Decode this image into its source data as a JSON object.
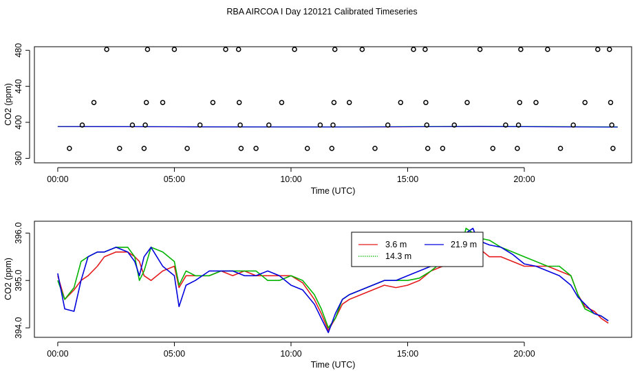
{
  "figure_title": "RBA AIRCOA I  Day 120121  Calibrated Timeseries",
  "chart_data": [
    {
      "type": "scatter",
      "title": "",
      "xlabel": "Time (UTC)",
      "ylabel": "CO2 (ppm)",
      "xlim": [
        -1.0,
        24.6
      ],
      "ylim": [
        355,
        484
      ],
      "x_ticks": [
        {
          "value": 0,
          "label": "00:00"
        },
        {
          "value": 5,
          "label": "05:00"
        },
        {
          "value": 10,
          "label": "10:00"
        },
        {
          "value": 15,
          "label": "15:00"
        },
        {
          "value": 20,
          "label": "20:00"
        }
      ],
      "y_ticks": [
        {
          "value": 360,
          "label": "360"
        },
        {
          "value": 400,
          "label": "400"
        },
        {
          "value": 440,
          "label": "440"
        },
        {
          "value": 480,
          "label": "480"
        }
      ],
      "colors": {
        "red": "#e41a1c",
        "green": "#00b400",
        "blue": "#0000dd"
      },
      "calibration_points": [
        {
          "x": 0.5,
          "y": 371
        },
        {
          "x": 1.05,
          "y": 397
        },
        {
          "x": 1.55,
          "y": 422
        },
        {
          "x": 2.1,
          "y": 481
        },
        {
          "x": 2.65,
          "y": 371
        },
        {
          "x": 3.2,
          "y": 397
        },
        {
          "x": 3.7,
          "y": 371
        },
        {
          "x": 3.75,
          "y": 397
        },
        {
          "x": 3.8,
          "y": 422
        },
        {
          "x": 3.85,
          "y": 481
        },
        {
          "x": 4.5,
          "y": 422
        },
        {
          "x": 5.0,
          "y": 481
        },
        {
          "x": 5.55,
          "y": 371
        },
        {
          "x": 6.1,
          "y": 397
        },
        {
          "x": 6.65,
          "y": 422
        },
        {
          "x": 7.2,
          "y": 481
        },
        {
          "x": 7.75,
          "y": 481
        },
        {
          "x": 7.78,
          "y": 422
        },
        {
          "x": 7.82,
          "y": 397
        },
        {
          "x": 7.86,
          "y": 371
        },
        {
          "x": 8.5,
          "y": 371
        },
        {
          "x": 9.05,
          "y": 397
        },
        {
          "x": 9.6,
          "y": 422
        },
        {
          "x": 10.15,
          "y": 481
        },
        {
          "x": 10.7,
          "y": 371
        },
        {
          "x": 11.25,
          "y": 397
        },
        {
          "x": 11.75,
          "y": 371
        },
        {
          "x": 11.8,
          "y": 397
        },
        {
          "x": 11.84,
          "y": 422
        },
        {
          "x": 11.88,
          "y": 481
        },
        {
          "x": 12.5,
          "y": 422
        },
        {
          "x": 13.05,
          "y": 481
        },
        {
          "x": 13.6,
          "y": 371
        },
        {
          "x": 14.15,
          "y": 397
        },
        {
          "x": 14.7,
          "y": 422
        },
        {
          "x": 15.25,
          "y": 481
        },
        {
          "x": 15.75,
          "y": 481
        },
        {
          "x": 15.78,
          "y": 422
        },
        {
          "x": 15.82,
          "y": 397
        },
        {
          "x": 15.86,
          "y": 371
        },
        {
          "x": 16.5,
          "y": 371
        },
        {
          "x": 17.0,
          "y": 397
        },
        {
          "x": 17.55,
          "y": 422
        },
        {
          "x": 18.1,
          "y": 481
        },
        {
          "x": 18.65,
          "y": 371
        },
        {
          "x": 19.2,
          "y": 397
        },
        {
          "x": 19.7,
          "y": 371
        },
        {
          "x": 19.75,
          "y": 397
        },
        {
          "x": 19.8,
          "y": 422
        },
        {
          "x": 19.85,
          "y": 481
        },
        {
          "x": 20.5,
          "y": 422
        },
        {
          "x": 21.0,
          "y": 481
        },
        {
          "x": 21.55,
          "y": 371
        },
        {
          "x": 22.1,
          "y": 397
        },
        {
          "x": 22.6,
          "y": 422
        },
        {
          "x": 23.15,
          "y": 481
        },
        {
          "x": 23.65,
          "y": 481
        },
        {
          "x": 23.7,
          "y": 422
        },
        {
          "x": 23.75,
          "y": 397
        },
        {
          "x": 23.8,
          "y": 371
        }
      ],
      "lines": [
        {
          "color": "#e41a1c",
          "x": [
            0,
            6,
            12,
            18,
            24
          ],
          "y": [
            395.2,
            395.0,
            394.8,
            395.3,
            394.9
          ]
        },
        {
          "color": "#00b400",
          "x": [
            0,
            6,
            12,
            18,
            24
          ],
          "y": [
            395.4,
            395.1,
            394.9,
            395.5,
            395.0
          ]
        },
        {
          "color": "#0000dd",
          "x": [
            0,
            6,
            12,
            18,
            24
          ],
          "y": [
            395.3,
            395.0,
            394.8,
            395.4,
            394.7
          ]
        }
      ]
    },
    {
      "type": "line",
      "title": "",
      "xlabel": "Time (UTC)",
      "ylabel": "CO2 (ppm)",
      "xlim": [
        -1.0,
        24.6
      ],
      "ylim": [
        393.8,
        396.25
      ],
      "x_ticks": [
        {
          "value": 0,
          "label": "00:00"
        },
        {
          "value": 5,
          "label": "05:00"
        },
        {
          "value": 10,
          "label": "10:00"
        },
        {
          "value": 15,
          "label": "15:00"
        },
        {
          "value": 20,
          "label": "20:00"
        }
      ],
      "y_ticks": [
        {
          "value": 394.0,
          "label": "394.0"
        },
        {
          "value": 395.0,
          "label": "395.0"
        },
        {
          "value": 396.0,
          "label": "396.0"
        }
      ],
      "legend": {
        "placement": "top-right",
        "entries": [
          {
            "label": "3.6 m",
            "color": "#e41a1c"
          },
          {
            "label": "14.3 m",
            "color": "#00b400"
          },
          {
            "label": "21.9 m",
            "color": "#0000dd"
          }
        ]
      },
      "x": [
        0,
        0.3,
        0.7,
        1.0,
        1.3,
        1.7,
        2.0,
        2.5,
        3.0,
        3.3,
        3.5,
        3.7,
        4.0,
        4.5,
        5.0,
        5.2,
        5.5,
        5.9,
        6.5,
        7.0,
        7.5,
        8.0,
        8.5,
        9.0,
        9.5,
        10.0,
        10.5,
        11.0,
        11.3,
        11.6,
        11.9,
        12.2,
        12.5,
        13.0,
        13.5,
        14.0,
        14.5,
        15.0,
        15.5,
        16.0,
        16.5,
        17.0,
        17.3,
        17.5,
        17.8,
        18.0,
        18.5,
        19.0,
        19.5,
        20.0,
        20.5,
        21.0,
        21.5,
        22.0,
        22.3,
        22.6,
        23.0,
        23.3,
        23.6
      ],
      "series": [
        {
          "name": "3.6 m",
          "color": "#e41a1c",
          "values": [
            395.1,
            394.6,
            394.8,
            395.0,
            395.1,
            395.3,
            395.5,
            395.6,
            395.6,
            395.5,
            395.4,
            395.1,
            395.0,
            395.2,
            395.3,
            394.85,
            395.1,
            395.1,
            395.1,
            395.2,
            395.1,
            395.2,
            395.1,
            395.1,
            395.1,
            395.1,
            394.95,
            394.6,
            394.3,
            393.95,
            394.2,
            394.5,
            394.6,
            394.7,
            394.8,
            394.9,
            394.85,
            394.9,
            395.0,
            395.2,
            395.3,
            395.5,
            395.6,
            395.9,
            396.0,
            395.7,
            395.5,
            395.5,
            395.4,
            395.3,
            395.3,
            395.3,
            395.2,
            395.1,
            394.7,
            394.45,
            394.35,
            394.2,
            394.1
          ]
        },
        {
          "name": "14.3 m",
          "color": "#00b400",
          "values": [
            395.0,
            394.6,
            394.85,
            395.4,
            395.5,
            395.6,
            395.6,
            395.7,
            395.7,
            395.5,
            395.0,
            395.2,
            395.7,
            395.6,
            395.4,
            394.9,
            395.2,
            395.1,
            395.1,
            395.2,
            395.2,
            395.2,
            395.2,
            395.0,
            395.0,
            395.1,
            395.0,
            394.7,
            394.4,
            394.0,
            394.2,
            394.6,
            394.7,
            394.8,
            394.9,
            395.0,
            395.0,
            395.0,
            395.05,
            395.2,
            395.4,
            395.6,
            395.7,
            396.1,
            396.0,
            395.9,
            395.85,
            395.7,
            395.6,
            395.5,
            395.4,
            395.3,
            395.3,
            395.1,
            394.7,
            394.4,
            394.3,
            394.25,
            394.15
          ]
        },
        {
          "name": "21.9 m",
          "color": "#0000dd",
          "values": [
            395.15,
            394.4,
            394.35,
            395.0,
            395.5,
            395.6,
            395.6,
            395.7,
            395.6,
            395.4,
            395.1,
            395.5,
            395.7,
            395.3,
            395.1,
            394.45,
            394.9,
            395.0,
            395.2,
            395.2,
            395.2,
            395.1,
            395.1,
            395.2,
            395.1,
            394.9,
            394.8,
            394.5,
            394.2,
            393.9,
            394.3,
            394.6,
            394.7,
            394.8,
            394.9,
            395.0,
            395.0,
            395.1,
            395.2,
            395.3,
            395.5,
            395.7,
            395.8,
            396.0,
            396.1,
            395.85,
            395.75,
            395.7,
            395.55,
            395.35,
            395.3,
            395.2,
            395.1,
            394.9,
            394.65,
            394.5,
            394.3,
            394.25,
            394.15
          ]
        }
      ]
    }
  ]
}
